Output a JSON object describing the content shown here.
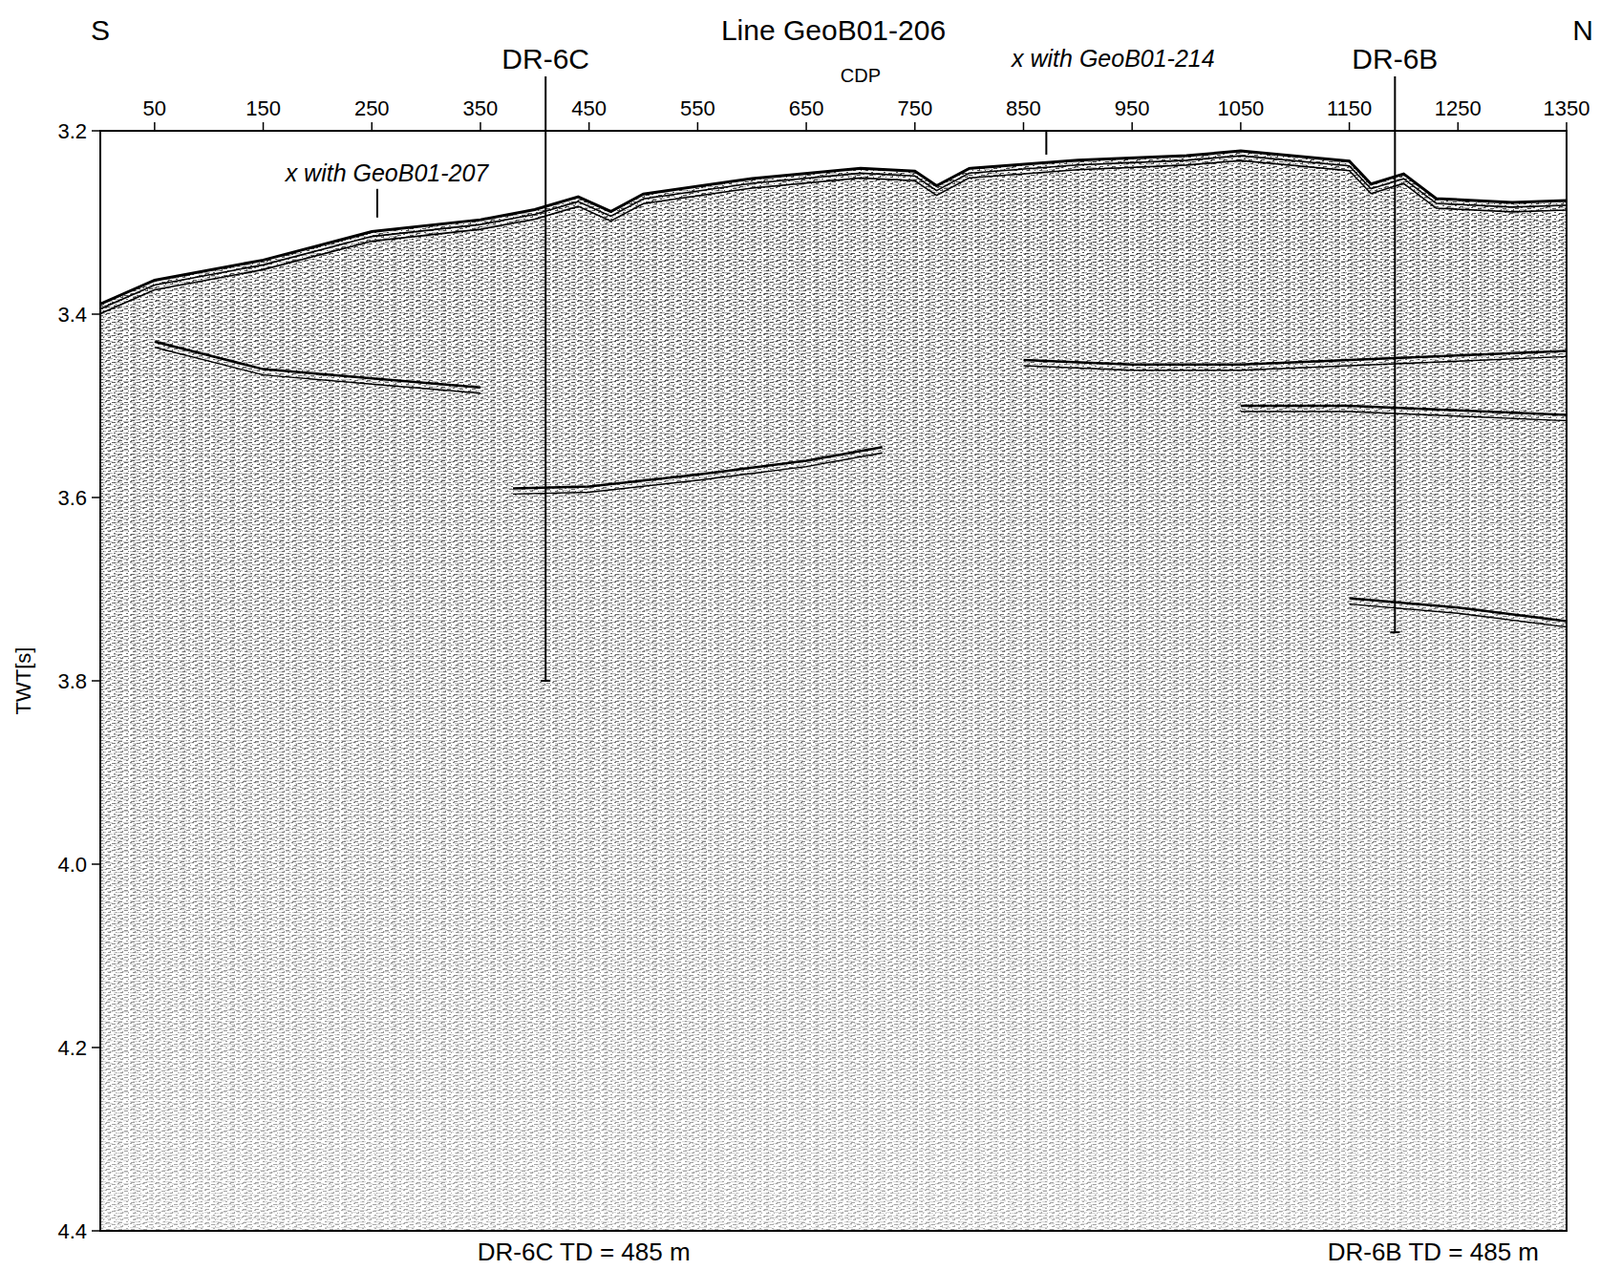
{
  "chart_data": {
    "type": "seismic_section",
    "title": "Line GeoB01-206",
    "x_label": "CDP",
    "y_label": "TWT[s]",
    "left_label": "S",
    "right_label": "N",
    "xlim": [
      0,
      1350
    ],
    "ylim": [
      3.2,
      4.4
    ],
    "xticks": [
      50,
      150,
      250,
      350,
      450,
      550,
      650,
      750,
      850,
      950,
      1050,
      1150,
      1250,
      1350
    ],
    "yticks": [
      3.2,
      3.4,
      3.6,
      3.8,
      {
        "value": 4,
        "label": "4.0"
      },
      4.2,
      4.4
    ],
    "horizons": [
      {
        "x": [
          0,
          50,
          150,
          250,
          350,
          400,
          440,
          470,
          500,
          600,
          700,
          750,
          770,
          800,
          900,
          1000,
          1050,
          1150,
          1170,
          1200,
          1230,
          1300,
          1350
        ],
        "values": [
          3.389,
          3.363,
          3.341,
          3.31,
          3.297,
          3.286,
          3.272,
          3.288,
          3.269,
          3.252,
          3.241,
          3.244,
          3.26,
          3.241,
          3.232,
          3.227,
          3.222,
          3.233,
          3.258,
          3.247,
          3.274,
          3.278,
          3.276
        ]
      },
      {
        "x": [
          380,
          450,
          550,
          650,
          720
        ],
        "values": [
          3.59,
          3.588,
          3.575,
          3.56,
          3.545
        ]
      },
      {
        "x": [
          850,
          950,
          1050,
          1150,
          1250,
          1350
        ],
        "values": [
          3.45,
          3.455,
          3.455,
          3.45,
          3.445,
          3.44
        ]
      },
      {
        "x": [
          1050,
          1150,
          1250,
          1350
        ],
        "values": [
          3.5,
          3.5,
          3.505,
          3.51
        ]
      },
      {
        "x": [
          1150,
          1250,
          1350
        ],
        "values": [
          3.71,
          3.72,
          3.735
        ]
      },
      {
        "x": [
          50,
          150,
          250,
          350
        ],
        "values": [
          3.43,
          3.46,
          3.47,
          3.48
        ]
      }
    ],
    "wells": [
      {
        "label": "DR-6C",
        "x": 410,
        "bottom": 3.8,
        "td_label": "DR-6C TD = 485 m"
      },
      {
        "label": "DR-6B",
        "x": 1192,
        "bottom": 3.747,
        "td_label": "DR-6B TD = 485 m"
      }
    ],
    "crossings": [
      {
        "label": "x with GeoB01-207",
        "x": 255,
        "y": 3.305
      },
      {
        "label": "x with GeoB01-214",
        "x": 871,
        "y": 3.226
      }
    ]
  }
}
